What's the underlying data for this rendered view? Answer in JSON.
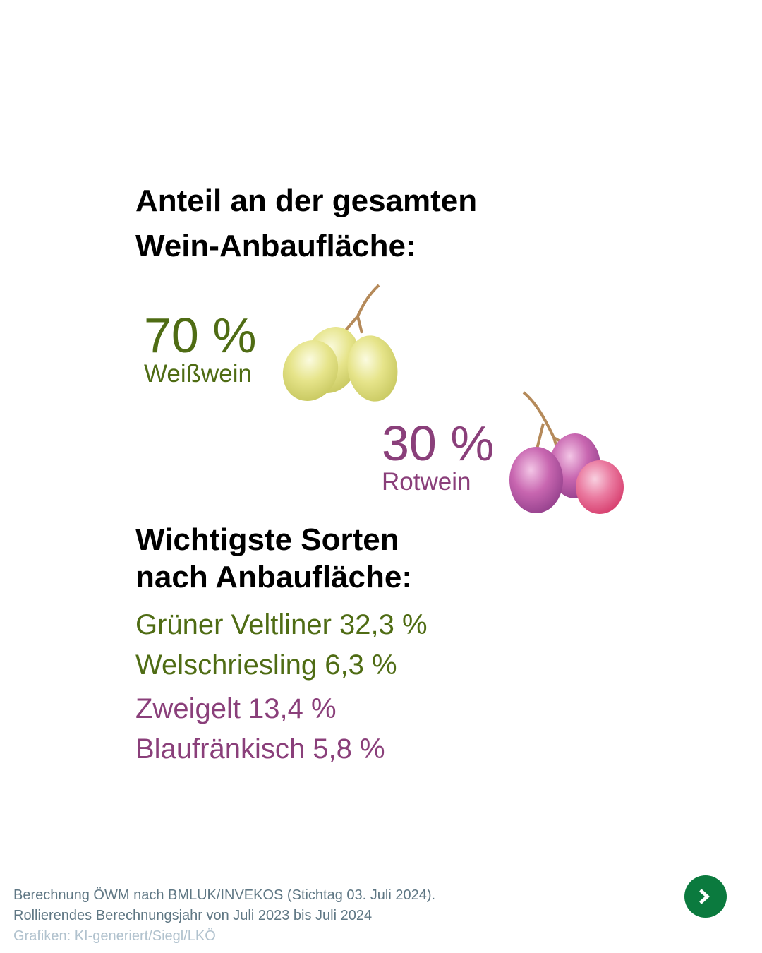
{
  "heading": {
    "line1": "Anteil an der gesamten",
    "line2": "Wein-Anbaufläche:"
  },
  "white": {
    "percent": "70 %",
    "label": "Weißwein"
  },
  "red": {
    "percent": "30 %",
    "label": "Rotwein"
  },
  "varieties": {
    "heading_line1": "Wichtigste Sorten",
    "heading_line2": "nach Anbaufläche:",
    "items": [
      {
        "text": "Grüner Veltliner 32,3 %",
        "type": "white"
      },
      {
        "text": "Welschriesling 6,3 %",
        "type": "white"
      },
      {
        "text": "Zweigelt 13,4 %",
        "type": "red"
      },
      {
        "text": "Blaufränkisch 5,8 %",
        "type": "red"
      }
    ]
  },
  "footer": {
    "line1": "Berechnung ÖWM nach BMLUK/INVEKOS (Stichtag 03. Juli 2024).",
    "line2": "Rollierendes Berechnungsjahr von Juli 2023 bis Juli 2024",
    "credits": "Grafiken: KI-generiert/Siegl/LKÖ"
  },
  "colors": {
    "white_wine": "#4f6c14",
    "red_wine": "#8a3f7a",
    "next_button": "#0b7a3e"
  },
  "icons": {
    "next": "chevron-right-icon"
  }
}
